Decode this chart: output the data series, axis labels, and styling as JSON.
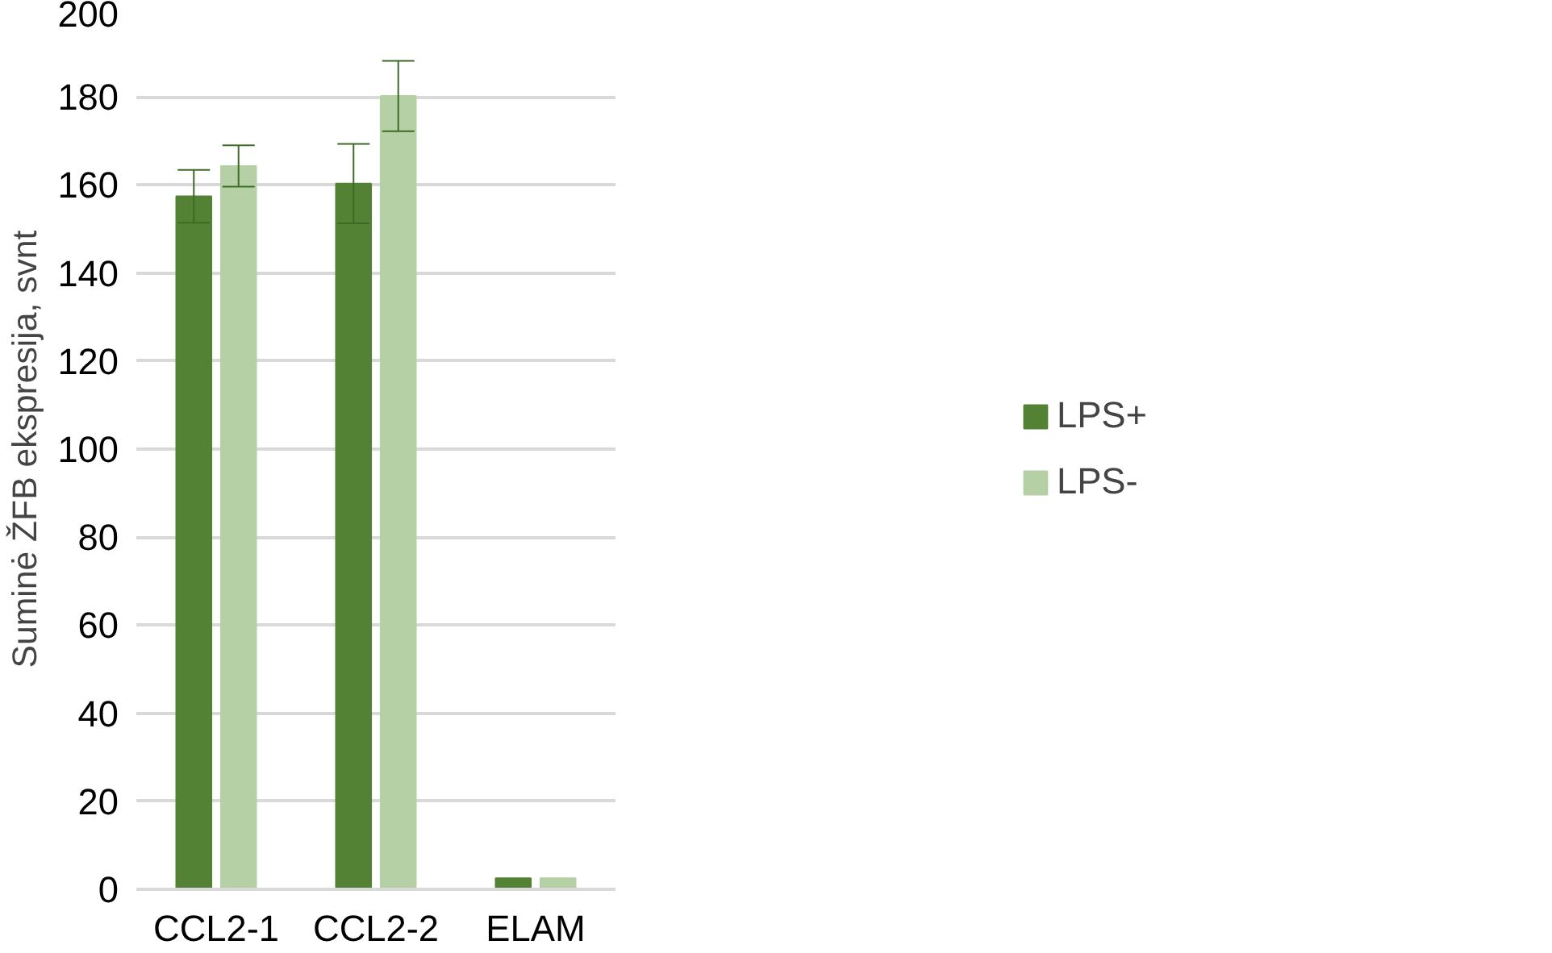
{
  "chart_data": {
    "type": "bar",
    "ylabel": "Suminė ŽFB ekspresija, svnt",
    "categories": [
      "CCL2-1",
      "CCL2-2",
      "ELAM"
    ],
    "series": [
      {
        "name": "LPS+",
        "color": "#548235",
        "values": [
          157.4,
          160.3,
          2.5
        ],
        "errors": [
          6,
          9,
          null
        ]
      },
      {
        "name": "LPS-",
        "color": "#b5d0a5",
        "values": [
          164.3,
          180.2,
          2.5
        ],
        "errors": [
          4.7,
          8,
          null
        ]
      }
    ],
    "ylim": [
      0,
      200
    ],
    "yticks": [
      0,
      20,
      40,
      60,
      80,
      100,
      120,
      140,
      160,
      180,
      200
    ],
    "grid": "y",
    "legend": "right"
  }
}
